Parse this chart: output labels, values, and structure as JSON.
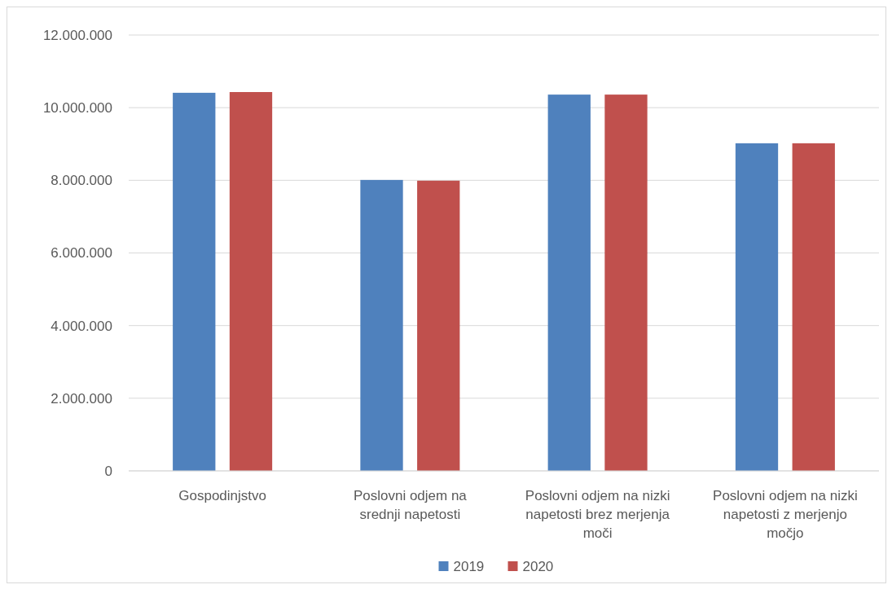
{
  "chart_data": {
    "type": "bar",
    "categories": [
      "Gospodinjstvo",
      "Poslovni odjem na srednji napetosti",
      "Poslovni odjem na nizki napetosti brez merjenja moči",
      "Poslovni odjem na nizki napetosti z merjenjo močjo"
    ],
    "series": [
      {
        "name": "2019",
        "color": "#4f81bd",
        "values": [
          10410000,
          8010000,
          10360000,
          9020000
        ]
      },
      {
        "name": "2020",
        "color": "#c0504d",
        "values": [
          10430000,
          7990000,
          10360000,
          9020000
        ]
      }
    ],
    "ylim": [
      0,
      12000000
    ],
    "yticks": [
      {
        "value": 0,
        "label": "0"
      },
      {
        "value": 2000000,
        "label": "2.000.000"
      },
      {
        "value": 4000000,
        "label": "4.000.000"
      },
      {
        "value": 6000000,
        "label": "6.000.000"
      },
      {
        "value": 8000000,
        "label": "8.000.000"
      },
      {
        "value": 10000000,
        "label": "10.000.000"
      },
      {
        "value": 12000000,
        "label": "12.000.000"
      }
    ],
    "grid": "y",
    "legend": "bottom"
  }
}
